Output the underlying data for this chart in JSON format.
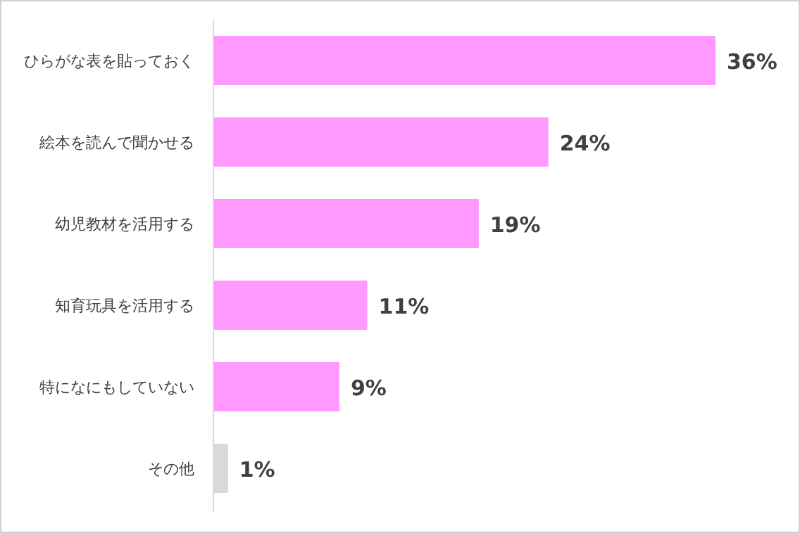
{
  "chart_data": {
    "type": "bar",
    "orientation": "horizontal",
    "categories": [
      "ひらがな表を貼っておく",
      "絵本を読んで聞かせる",
      "幼児教材を活用する",
      "知育玩具を活用する",
      "特になにもしていない",
      "その他"
    ],
    "values": [
      36,
      24,
      19,
      11,
      9,
      1
    ],
    "value_labels": [
      "36%",
      "24%",
      "19%",
      "11%",
      "9%",
      "1%"
    ],
    "colors": [
      "#ff99ff",
      "#ff99ff",
      "#ff99ff",
      "#ff99ff",
      "#ff99ff",
      "#d9d9d9"
    ]
  }
}
